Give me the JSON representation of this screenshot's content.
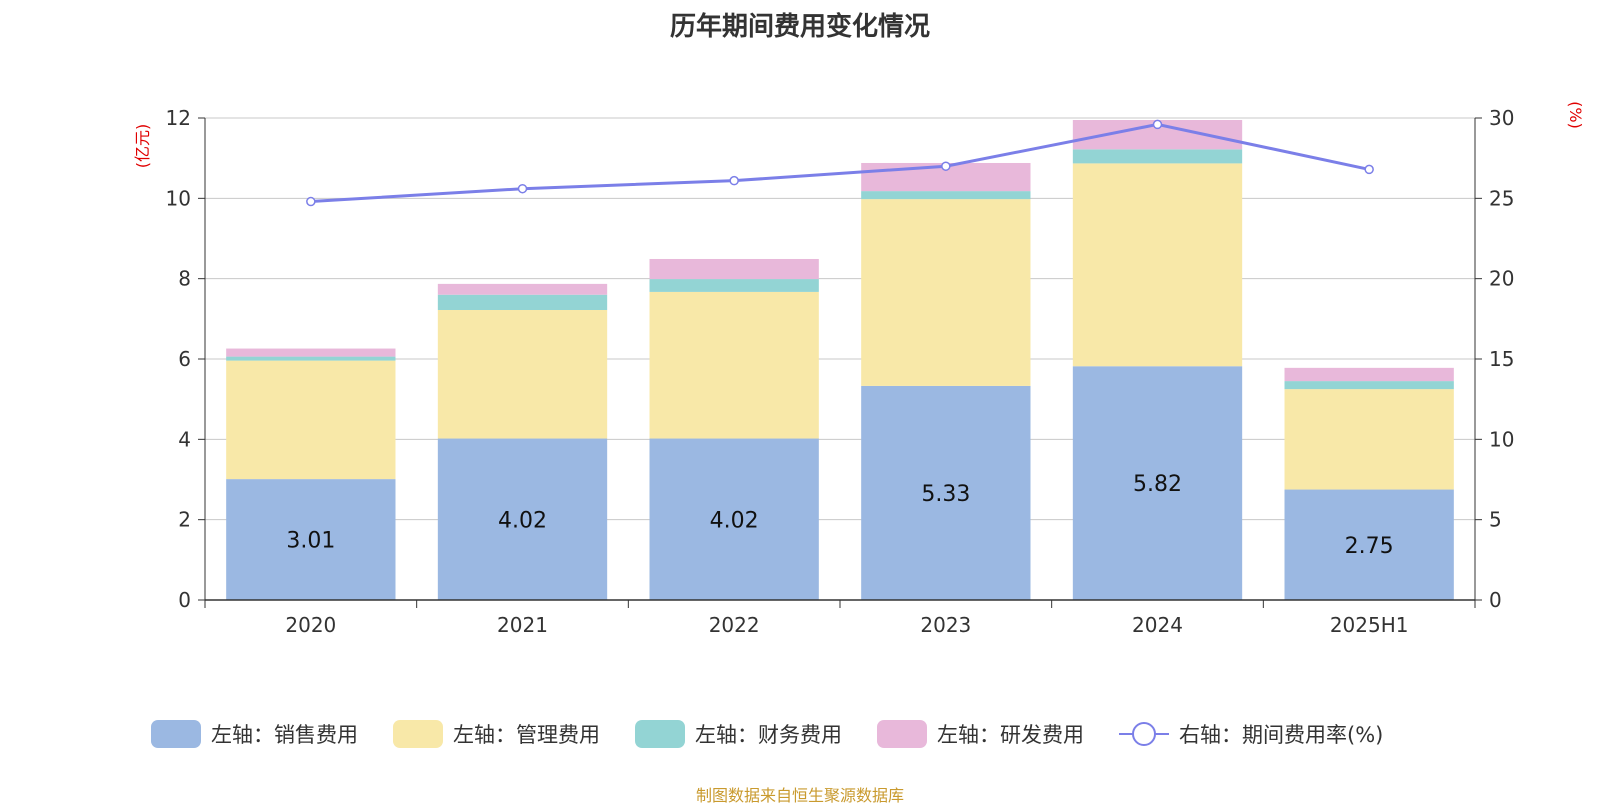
{
  "chart_data": {
    "type": "bar",
    "title": "历年期间费用变化情况",
    "categories": [
      "2020",
      "2021",
      "2022",
      "2023",
      "2024",
      "2025H1"
    ],
    "y_left": {
      "unit": "(亿元)",
      "ylim": [
        0,
        12
      ],
      "ticks": [
        0,
        2,
        4,
        6,
        8,
        10,
        12
      ]
    },
    "y_right": {
      "unit": "(%)",
      "ylim": [
        0,
        30
      ],
      "ticks": [
        0,
        5,
        10,
        15,
        20,
        25,
        30
      ]
    },
    "stacked": true,
    "grid": true,
    "legend_position": "bottom",
    "series": [
      {
        "name": "左轴：销售费用",
        "axis": "left",
        "type": "bar",
        "color": "#9bb8e2",
        "values": [
          3.01,
          4.02,
          4.02,
          5.33,
          5.82,
          2.75
        ],
        "show_labels": true
      },
      {
        "name": "左轴：管理费用",
        "axis": "left",
        "type": "bar",
        "color": "#f8e8a8",
        "values": [
          2.95,
          3.2,
          3.65,
          4.65,
          5.05,
          2.5
        ]
      },
      {
        "name": "左轴：财务费用",
        "axis": "left",
        "type": "bar",
        "color": "#93d4d4",
        "values": [
          0.1,
          0.38,
          0.32,
          0.2,
          0.35,
          0.2
        ]
      },
      {
        "name": "左轴：研发费用",
        "axis": "left",
        "type": "bar",
        "color": "#e8b8da",
        "values": [
          0.2,
          0.27,
          0.5,
          0.7,
          0.73,
          0.33
        ]
      },
      {
        "name": "右轴：期间费用率(%)",
        "axis": "right",
        "type": "line",
        "color": "#7b7fe8",
        "values": [
          24.8,
          25.6,
          26.1,
          27.0,
          29.6,
          26.8
        ]
      }
    ]
  },
  "footer": {
    "source": "制图数据来自恒生聚源数据库"
  }
}
